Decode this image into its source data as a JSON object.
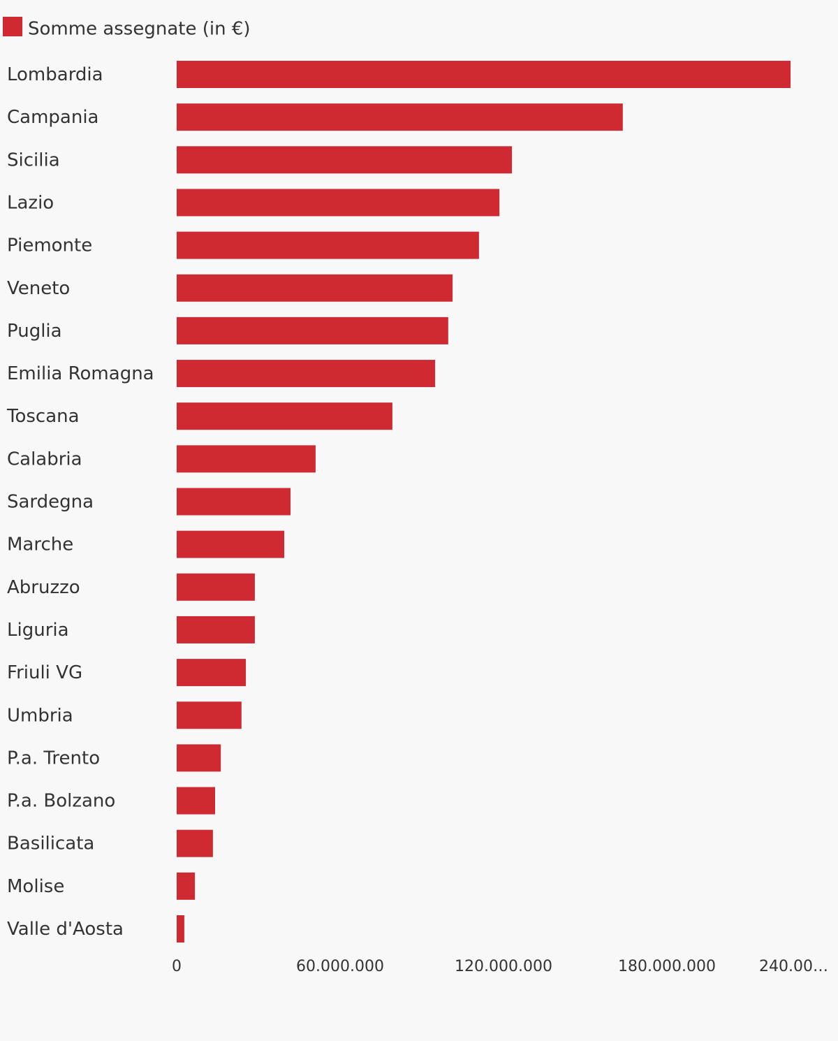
{
  "chart_data": {
    "type": "bar",
    "orientation": "horizontal",
    "categories": [
      "Lombardia",
      "Campania",
      "Sicilia",
      "Lazio",
      "Piemonte",
      "Veneto",
      "Puglia",
      "Emilia Romagna",
      "Toscana",
      "Calabria",
      "Sardegna",
      "Marche",
      "Abruzzo",
      "Liguria",
      "Friuli VG",
      "Umbria",
      "P.a. Trento",
      "P.a. Bolzano",
      "Basilicata",
      "Molise",
      "Valle d'Aosta"
    ],
    "series": [
      {
        "name": "Somme assegnate (in €)",
        "color": "#cf2a31",
        "values": [
          225400000,
          163800000,
          123100000,
          118500000,
          111000000,
          101300000,
          99700000,
          94900000,
          79200000,
          51000000,
          41800000,
          39500000,
          28700000,
          28700000,
          25400000,
          23800000,
          16200000,
          14100000,
          13300000,
          6700000,
          2800000
        ]
      }
    ],
    "xlim": [
      0,
      240000000
    ],
    "xticks": [
      0,
      {
        "value": 60000000,
        "label": "60.000.000"
      },
      {
        "value": 120000000,
        "label": "120.000.000"
      },
      {
        "value": 180000000,
        "label": "180.000.000"
      },
      {
        "value": 240000000,
        "label": "240.00…"
      }
    ],
    "grid": false,
    "legend": "top-left"
  }
}
